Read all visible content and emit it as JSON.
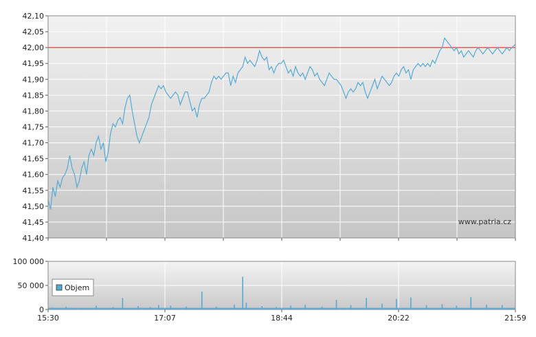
{
  "chart_data": [
    {
      "type": "line",
      "x_start": "15:30",
      "x_end": "21:59",
      "ylim": [
        41.4,
        42.1
      ],
      "y_ticks": [
        {
          "value": 41.4,
          "label": "41,40"
        },
        {
          "value": 41.45,
          "label": "41,45"
        },
        {
          "value": 41.5,
          "label": "41,50"
        },
        {
          "value": 41.55,
          "label": "41,55"
        },
        {
          "value": 41.6,
          "label": "41,60"
        },
        {
          "value": 41.65,
          "label": "41,65"
        },
        {
          "value": 41.7,
          "label": "41,70"
        },
        {
          "value": 41.75,
          "label": "41,75"
        },
        {
          "value": 41.8,
          "label": "41,80"
        },
        {
          "value": 41.85,
          "label": "41,85"
        },
        {
          "value": 41.9,
          "label": "41,90"
        },
        {
          "value": 41.95,
          "label": "41,95"
        },
        {
          "value": 42.0,
          "label": "42,00"
        },
        {
          "value": 42.05,
          "label": "42,05"
        },
        {
          "value": 42.1,
          "label": "42,10"
        }
      ],
      "reference_line": {
        "value": 42.0,
        "color": "#ff0000"
      },
      "series_color": "#55aad4",
      "watermark": "www.patria.cz",
      "series": [
        {
          "values": [
            [
              "15:30",
              41.52
            ],
            [
              "15:32",
              41.49
            ],
            [
              "15:34",
              41.56
            ],
            [
              "15:36",
              41.53
            ],
            [
              "15:38",
              41.58
            ],
            [
              "15:40",
              41.56
            ],
            [
              "15:42",
              41.59
            ],
            [
              "15:44",
              41.6
            ],
            [
              "15:46",
              41.62
            ],
            [
              "15:48",
              41.66
            ],
            [
              "15:50",
              41.62
            ],
            [
              "15:52",
              41.6
            ],
            [
              "15:54",
              41.56
            ],
            [
              "15:56",
              41.58
            ],
            [
              "15:58",
              41.62
            ],
            [
              "16:00",
              41.64
            ],
            [
              "16:02",
              41.6
            ],
            [
              "16:04",
              41.66
            ],
            [
              "16:06",
              41.68
            ],
            [
              "16:08",
              41.66
            ],
            [
              "16:10",
              41.7
            ],
            [
              "16:12",
              41.72
            ],
            [
              "16:14",
              41.68
            ],
            [
              "16:16",
              41.7
            ],
            [
              "16:18",
              41.64
            ],
            [
              "16:20",
              41.67
            ],
            [
              "16:22",
              41.73
            ],
            [
              "16:24",
              41.76
            ],
            [
              "16:26",
              41.75
            ],
            [
              "16:28",
              41.77
            ],
            [
              "16:30",
              41.78
            ],
            [
              "16:32",
              41.76
            ],
            [
              "16:34",
              41.81
            ],
            [
              "16:36",
              41.84
            ],
            [
              "16:38",
              41.85
            ],
            [
              "16:40",
              41.8
            ],
            [
              "16:42",
              41.76
            ],
            [
              "16:44",
              41.72
            ],
            [
              "16:46",
              41.7
            ],
            [
              "16:48",
              41.72
            ],
            [
              "16:50",
              41.74
            ],
            [
              "16:52",
              41.76
            ],
            [
              "16:54",
              41.78
            ],
            [
              "16:56",
              41.82
            ],
            [
              "16:58",
              41.84
            ],
            [
              "17:00",
              41.86
            ],
            [
              "17:02",
              41.88
            ],
            [
              "17:04",
              41.87
            ],
            [
              "17:06",
              41.88
            ],
            [
              "17:08",
              41.86
            ],
            [
              "17:10",
              41.85
            ],
            [
              "17:12",
              41.84
            ],
            [
              "17:14",
              41.85
            ],
            [
              "17:16",
              41.86
            ],
            [
              "17:18",
              41.85
            ],
            [
              "17:20",
              41.82
            ],
            [
              "17:22",
              41.84
            ],
            [
              "17:24",
              41.86
            ],
            [
              "17:26",
              41.86
            ],
            [
              "17:28",
              41.83
            ],
            [
              "17:30",
              41.8
            ],
            [
              "17:32",
              41.81
            ],
            [
              "17:34",
              41.78
            ],
            [
              "17:36",
              41.82
            ],
            [
              "17:38",
              41.84
            ],
            [
              "17:40",
              41.84
            ],
            [
              "17:42",
              41.85
            ],
            [
              "17:44",
              41.86
            ],
            [
              "17:46",
              41.89
            ],
            [
              "17:48",
              41.91
            ],
            [
              "17:50",
              41.9
            ],
            [
              "17:52",
              41.91
            ],
            [
              "17:54",
              41.9
            ],
            [
              "17:56",
              41.91
            ],
            [
              "17:58",
              41.92
            ],
            [
              "18:00",
              41.92
            ],
            [
              "18:02",
              41.88
            ],
            [
              "18:04",
              41.91
            ],
            [
              "18:06",
              41.89
            ],
            [
              "18:08",
              41.92
            ],
            [
              "18:10",
              41.93
            ],
            [
              "18:12",
              41.94
            ],
            [
              "18:14",
              41.97
            ],
            [
              "18:16",
              41.95
            ],
            [
              "18:18",
              41.96
            ],
            [
              "18:20",
              41.95
            ],
            [
              "18:22",
              41.94
            ],
            [
              "18:24",
              41.96
            ],
            [
              "18:26",
              41.99
            ],
            [
              "18:28",
              41.97
            ],
            [
              "18:30",
              41.96
            ],
            [
              "18:32",
              41.97
            ],
            [
              "18:34",
              41.93
            ],
            [
              "18:36",
              41.94
            ],
            [
              "18:38",
              41.92
            ],
            [
              "18:40",
              41.94
            ],
            [
              "18:42",
              41.95
            ],
            [
              "18:44",
              41.95
            ],
            [
              "18:46",
              41.96
            ],
            [
              "18:48",
              41.94
            ],
            [
              "18:50",
              41.92
            ],
            [
              "18:52",
              41.93
            ],
            [
              "18:54",
              41.91
            ],
            [
              "18:56",
              41.94
            ],
            [
              "18:58",
              41.92
            ],
            [
              "19:00",
              41.91
            ],
            [
              "19:02",
              41.92
            ],
            [
              "19:04",
              41.9
            ],
            [
              "19:06",
              41.92
            ],
            [
              "19:08",
              41.94
            ],
            [
              "19:10",
              41.93
            ],
            [
              "19:12",
              41.91
            ],
            [
              "19:14",
              41.92
            ],
            [
              "19:16",
              41.9
            ],
            [
              "19:18",
              41.89
            ],
            [
              "19:20",
              41.88
            ],
            [
              "19:22",
              41.9
            ],
            [
              "19:24",
              41.92
            ],
            [
              "19:26",
              41.91
            ],
            [
              "19:28",
              41.9
            ],
            [
              "19:30",
              41.9
            ],
            [
              "19:32",
              41.89
            ],
            [
              "19:34",
              41.88
            ],
            [
              "19:36",
              41.86
            ],
            [
              "19:38",
              41.84
            ],
            [
              "19:40",
              41.86
            ],
            [
              "19:42",
              41.87
            ],
            [
              "19:44",
              41.86
            ],
            [
              "19:46",
              41.87
            ],
            [
              "19:48",
              41.89
            ],
            [
              "19:50",
              41.88
            ],
            [
              "19:52",
              41.89
            ],
            [
              "19:54",
              41.86
            ],
            [
              "19:56",
              41.84
            ],
            [
              "19:58",
              41.86
            ],
            [
              "20:00",
              41.88
            ],
            [
              "20:02",
              41.9
            ],
            [
              "20:04",
              41.87
            ],
            [
              "20:06",
              41.89
            ],
            [
              "20:08",
              41.91
            ],
            [
              "20:10",
              41.9
            ],
            [
              "20:12",
              41.89
            ],
            [
              "20:14",
              41.88
            ],
            [
              "20:16",
              41.89
            ],
            [
              "20:18",
              41.91
            ],
            [
              "20:20",
              41.92
            ],
            [
              "20:22",
              41.91
            ],
            [
              "20:24",
              41.93
            ],
            [
              "20:26",
              41.94
            ],
            [
              "20:28",
              41.92
            ],
            [
              "20:30",
              41.93
            ],
            [
              "20:32",
              41.9
            ],
            [
              "20:34",
              41.93
            ],
            [
              "20:36",
              41.94
            ],
            [
              "20:38",
              41.95
            ],
            [
              "20:40",
              41.94
            ],
            [
              "20:42",
              41.95
            ],
            [
              "20:44",
              41.94
            ],
            [
              "20:46",
              41.95
            ],
            [
              "20:48",
              41.94
            ],
            [
              "20:50",
              41.96
            ],
            [
              "20:52",
              41.95
            ],
            [
              "20:54",
              41.97
            ],
            [
              "20:56",
              41.99
            ],
            [
              "20:58",
              42.0
            ],
            [
              "21:00",
              42.03
            ],
            [
              "21:02",
              42.02
            ],
            [
              "21:04",
              42.01
            ],
            [
              "21:06",
              42.0
            ],
            [
              "21:08",
              41.99
            ],
            [
              "21:10",
              42.0
            ],
            [
              "21:12",
              41.98
            ],
            [
              "21:14",
              41.99
            ],
            [
              "21:16",
              41.97
            ],
            [
              "21:18",
              41.98
            ],
            [
              "21:20",
              41.99
            ],
            [
              "21:22",
              41.98
            ],
            [
              "21:24",
              41.97
            ],
            [
              "21:26",
              41.99
            ],
            [
              "21:28",
              42.0
            ],
            [
              "21:30",
              41.99
            ],
            [
              "21:32",
              41.98
            ],
            [
              "21:34",
              41.99
            ],
            [
              "21:36",
              42.0
            ],
            [
              "21:38",
              41.99
            ],
            [
              "21:40",
              41.98
            ],
            [
              "21:42",
              41.99
            ],
            [
              "21:44",
              42.0
            ],
            [
              "21:46",
              41.99
            ],
            [
              "21:48",
              41.98
            ],
            [
              "21:50",
              41.99
            ],
            [
              "21:52",
              42.0
            ],
            [
              "21:54",
              41.99
            ],
            [
              "21:56",
              42.0
            ],
            [
              "21:59",
              42.01
            ]
          ]
        }
      ]
    },
    {
      "type": "bar",
      "ylim": [
        0,
        100000
      ],
      "y_ticks": [
        {
          "value": 0,
          "label": "0"
        },
        {
          "value": 50000,
          "label": "50 000"
        },
        {
          "value": 100000,
          "label": "100 000"
        }
      ],
      "x_ticks": [
        "15:30",
        "17:07",
        "18:44",
        "20:22",
        "21:59"
      ],
      "series_color": "#55aad4",
      "legend": "Objem",
      "series": [
        {
          "name": "Objem",
          "values": [
            [
              "15:33",
              4000
            ],
            [
              "15:45",
              6000
            ],
            [
              "15:58",
              3000
            ],
            [
              "16:10",
              8000
            ],
            [
              "16:24",
              5000
            ],
            [
              "16:32",
              24000
            ],
            [
              "16:45",
              7000
            ],
            [
              "16:55",
              5000
            ],
            [
              "17:02",
              9000
            ],
            [
              "17:12",
              8000
            ],
            [
              "17:25",
              6000
            ],
            [
              "17:38",
              37000
            ],
            [
              "17:50",
              6000
            ],
            [
              "18:05",
              10000
            ],
            [
              "18:12",
              68000
            ],
            [
              "18:15",
              14000
            ],
            [
              "18:28",
              7000
            ],
            [
              "18:40",
              5000
            ],
            [
              "18:52",
              8000
            ],
            [
              "19:04",
              10000
            ],
            [
              "19:18",
              6000
            ],
            [
              "19:30",
              20000
            ],
            [
              "19:42",
              9000
            ],
            [
              "19:55",
              24000
            ],
            [
              "20:08",
              12000
            ],
            [
              "20:20",
              22000
            ],
            [
              "20:32",
              25000
            ],
            [
              "20:45",
              9000
            ],
            [
              "20:58",
              11000
            ],
            [
              "21:10",
              8000
            ],
            [
              "21:22",
              26000
            ],
            [
              "21:35",
              10000
            ],
            [
              "21:48",
              9000
            ]
          ]
        }
      ]
    }
  ]
}
